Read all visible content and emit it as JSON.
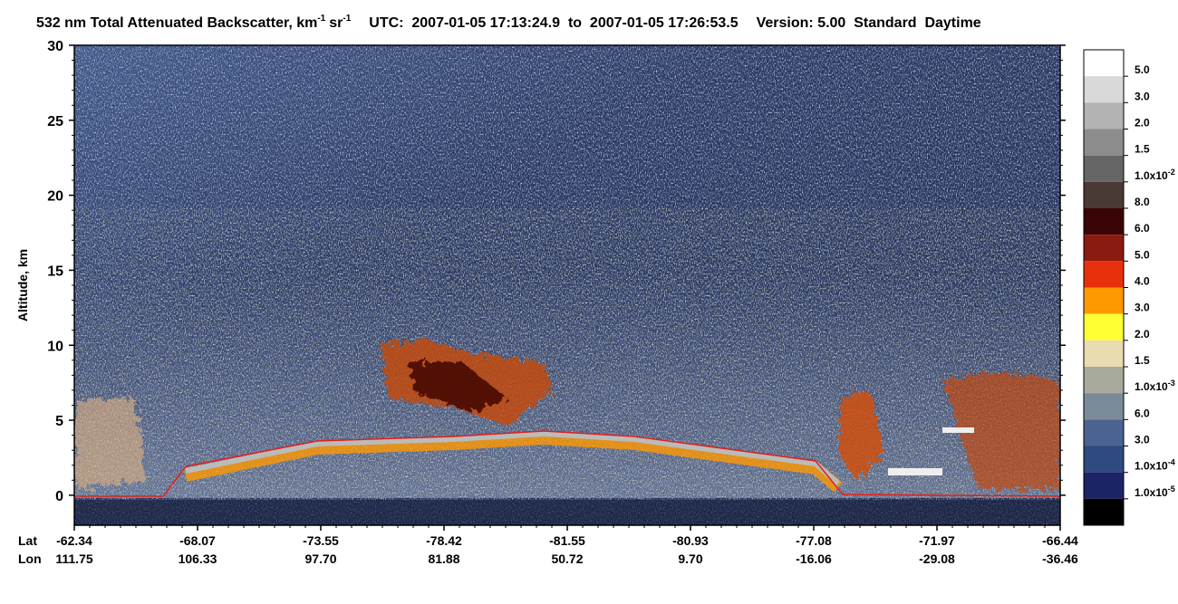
{
  "chart_data": {
    "type": "heatmap",
    "title": [
      "532 nm Total Attenuated Backscatter, km",
      "-1",
      "sr",
      "-1"
    ],
    "utc": "UTC:  2007-01-05 17:13:24.9  to  2007-01-05 17:26:53.5",
    "version": "Version: 5.00  Standard  Daytime",
    "y_label": "Altitude, km",
    "ylim": [
      -2,
      30
    ],
    "yticks": [
      0,
      5,
      10,
      15,
      20,
      25,
      30
    ],
    "x_row_labels": [
      "Lat",
      "Lon"
    ],
    "lat": [
      "-62.34",
      "-68.07",
      "-73.55",
      "-78.42",
      "-81.55",
      "-80.93",
      "-77.08",
      "-71.97",
      "-66.44"
    ],
    "lon": [
      "111.75",
      "106.33",
      "97.70",
      "81.88",
      "50.72",
      "9.70",
      "-16.06",
      "-29.08",
      "-36.46"
    ],
    "colorbar": {
      "colors": [
        "#ffffff",
        "#d9d9d9",
        "#b3b3b3",
        "#8c8c8c",
        "#666666",
        "#4a3a36",
        "#3a0505",
        "#8b1a10",
        "#e8300c",
        "#ff9900",
        "#ffff33",
        "#e8dcb0",
        "#a8ab9c",
        "#7a8a99",
        "#4a6390",
        "#2f4a80",
        "#1c2466",
        "#000000"
      ],
      "labels": [
        "5.0",
        "3.0",
        "2.0",
        "1.5",
        {
          "text": "1.0x10",
          "sup": "-2"
        },
        "8.0",
        "6.0",
        "5.0",
        "4.0",
        "3.0",
        "2.0",
        "1.5",
        {
          "text": "1.0x10",
          "sup": "-3"
        },
        "6.0",
        "3.0",
        {
          "text": "1.0x10",
          "sup": "-4"
        },
        {
          "text": "1.0x10",
          "sup": "-5"
        }
      ]
    }
  }
}
